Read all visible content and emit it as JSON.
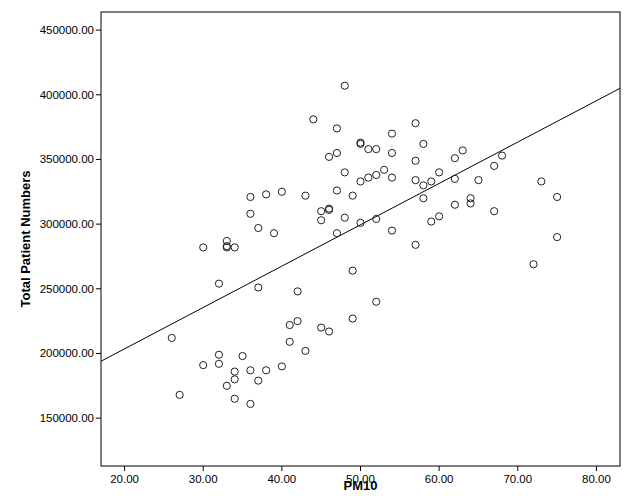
{
  "chart_data": {
    "type": "scatter",
    "x_label": "PM10",
    "y_label": "Total Patient Numbers",
    "marker": "open-circle",
    "color": "#222222",
    "xlim": [
      17,
      83
    ],
    "ylim": [
      113000,
      464000
    ],
    "xticks": [
      {
        "value": 20,
        "label": "20.00"
      },
      {
        "value": 30,
        "label": "30.00"
      },
      {
        "value": 40,
        "label": "40.00"
      },
      {
        "value": 50,
        "label": "50.00"
      },
      {
        "value": 60,
        "label": "60.00"
      },
      {
        "value": 70,
        "label": "70.00"
      },
      {
        "value": 80,
        "label": "80.00"
      }
    ],
    "yticks": [
      {
        "value": 150000,
        "label": "150000.00"
      },
      {
        "value": 200000,
        "label": "200000.00"
      },
      {
        "value": 250000,
        "label": "250000.00"
      },
      {
        "value": 300000,
        "label": "300000.00"
      },
      {
        "value": 350000,
        "label": "350000.00"
      },
      {
        "value": 400000,
        "label": "400000.00"
      },
      {
        "value": 450000,
        "label": "450000.00"
      }
    ],
    "x": [
      26,
      27,
      30,
      30,
      32,
      32,
      32,
      33,
      33,
      33,
      33,
      34,
      34,
      34,
      34,
      35,
      36,
      36,
      36,
      36,
      37,
      37,
      37,
      38,
      38,
      39,
      40,
      40,
      41,
      41,
      42,
      42,
      43,
      43,
      44,
      45,
      45,
      45,
      46,
      46,
      46,
      46,
      47,
      47,
      47,
      47,
      48,
      48,
      48,
      49,
      49,
      49,
      50,
      50,
      50,
      50,
      51,
      51,
      52,
      52,
      52,
      52,
      53,
      54,
      54,
      54,
      54,
      57,
      57,
      57,
      57,
      58,
      58,
      58,
      59,
      59,
      60,
      60,
      62,
      62,
      62,
      63,
      64,
      64,
      65,
      67,
      67,
      68,
      72,
      73,
      75,
      75
    ],
    "values": [
      212000,
      168000,
      282000,
      191000,
      254000,
      199000,
      192000,
      287000,
      283000,
      282000,
      175000,
      282000,
      186000,
      180000,
      165000,
      198000,
      321000,
      308000,
      187000,
      161000,
      297000,
      251000,
      179000,
      323000,
      187000,
      293000,
      325000,
      190000,
      222000,
      209000,
      248000,
      225000,
      322000,
      202000,
      381000,
      310000,
      303000,
      220000,
      352000,
      312000,
      311000,
      217000,
      374000,
      355000,
      326000,
      293000,
      407000,
      340000,
      305000,
      322000,
      264000,
      227000,
      363000,
      362000,
      333000,
      301000,
      358000,
      336000,
      358000,
      338000,
      304000,
      240000,
      342000,
      370000,
      355000,
      336000,
      295000,
      378000,
      349000,
      334000,
      284000,
      362000,
      330000,
      320000,
      333000,
      302000,
      340000,
      306000,
      351000,
      335000,
      315000,
      357000,
      320000,
      316000,
      334000,
      345000,
      310000,
      353000,
      269000,
      333000,
      321000,
      290000
    ],
    "fit_line": {
      "x": [
        17,
        83
      ],
      "values": [
        194000,
        405000
      ]
    }
  }
}
